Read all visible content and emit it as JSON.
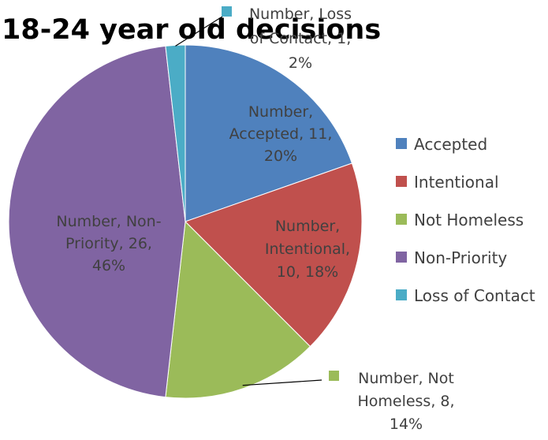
{
  "chart_data": {
    "type": "pie",
    "title": "18-24 year old decisions",
    "series_name": "Number",
    "categories": [
      "Accepted",
      "Intentional",
      "Not Homeless",
      "Non-Priority",
      "Loss of Contact"
    ],
    "values": [
      11,
      10,
      8,
      26,
      1
    ],
    "percentages": [
      20,
      18,
      14,
      46,
      2
    ],
    "colors": [
      "#4F81BD",
      "#C0504D",
      "#9BBB59",
      "#8064A2",
      "#4BACC6"
    ],
    "data_labels": [
      [
        "Number,",
        "Accepted, 11,",
        "20%"
      ],
      [
        "Number,",
        "Intentional,",
        "10, 18%"
      ],
      [
        "Number, Not",
        "Homeless, 8,",
        "14%"
      ],
      [
        "Number, Non-",
        "Priority, 26,",
        "46%"
      ],
      [
        "Number, Loss",
        "of Contact, 1,",
        "2%"
      ]
    ],
    "legend": {
      "position": "right",
      "entries": [
        "Accepted",
        "Intentional",
        "Not Homeless",
        "Non-Priority",
        "Loss of Contact"
      ]
    }
  }
}
